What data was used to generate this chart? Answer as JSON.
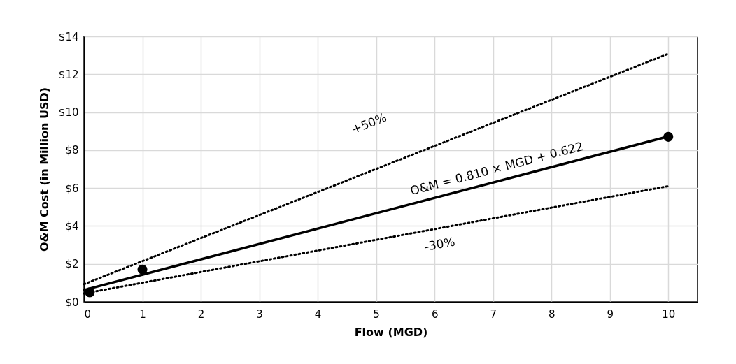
{
  "chart_data": {
    "type": "scatter",
    "xlabel": "Flow (MGD)",
    "ylabel": "O&M Cost (in Million USD)",
    "xlim": [
      0,
      10.5
    ],
    "xticks": [
      0,
      1,
      2,
      3,
      4,
      5,
      6,
      7,
      8,
      9,
      10
    ],
    "ylim": [
      0,
      14
    ],
    "yticks": [
      {
        "value": 0,
        "label": "$0"
      },
      {
        "value": 2,
        "label": "$2"
      },
      {
        "value": 4,
        "label": "$4"
      },
      {
        "value": 6,
        "label": "$6"
      },
      {
        "value": 8,
        "label": "$8"
      },
      {
        "value": 10,
        "label": "$10"
      },
      {
        "value": 12,
        "label": "$12"
      },
      {
        "value": 14,
        "label": "$14"
      }
    ],
    "grid": true,
    "marker": "circle",
    "series": [
      {
        "color": "#000000",
        "x": [
          0.1,
          1,
          10
        ],
        "values": [
          0.5,
          1.7,
          8.7
        ]
      },
      {
        "type": "line",
        "color": "#000000",
        "line_style": "solid",
        "marker": "none",
        "x": [
          0,
          10
        ],
        "values": [
          0.62,
          8.72
        ]
      },
      {
        "type": "line",
        "color": "#000000",
        "line_style": "dotted",
        "marker": "none",
        "x": [
          0,
          10
        ],
        "values": [
          0.93,
          13.08
        ]
      },
      {
        "type": "line",
        "color": "#000000",
        "line_style": "dotted",
        "marker": "none",
        "x": [
          0,
          10
        ],
        "values": [
          0.44,
          6.1
        ]
      }
    ],
    "annotations": [
      "+50%",
      "O&M = 0.810 × MGD + 0.622",
      "-30%"
    ]
  }
}
